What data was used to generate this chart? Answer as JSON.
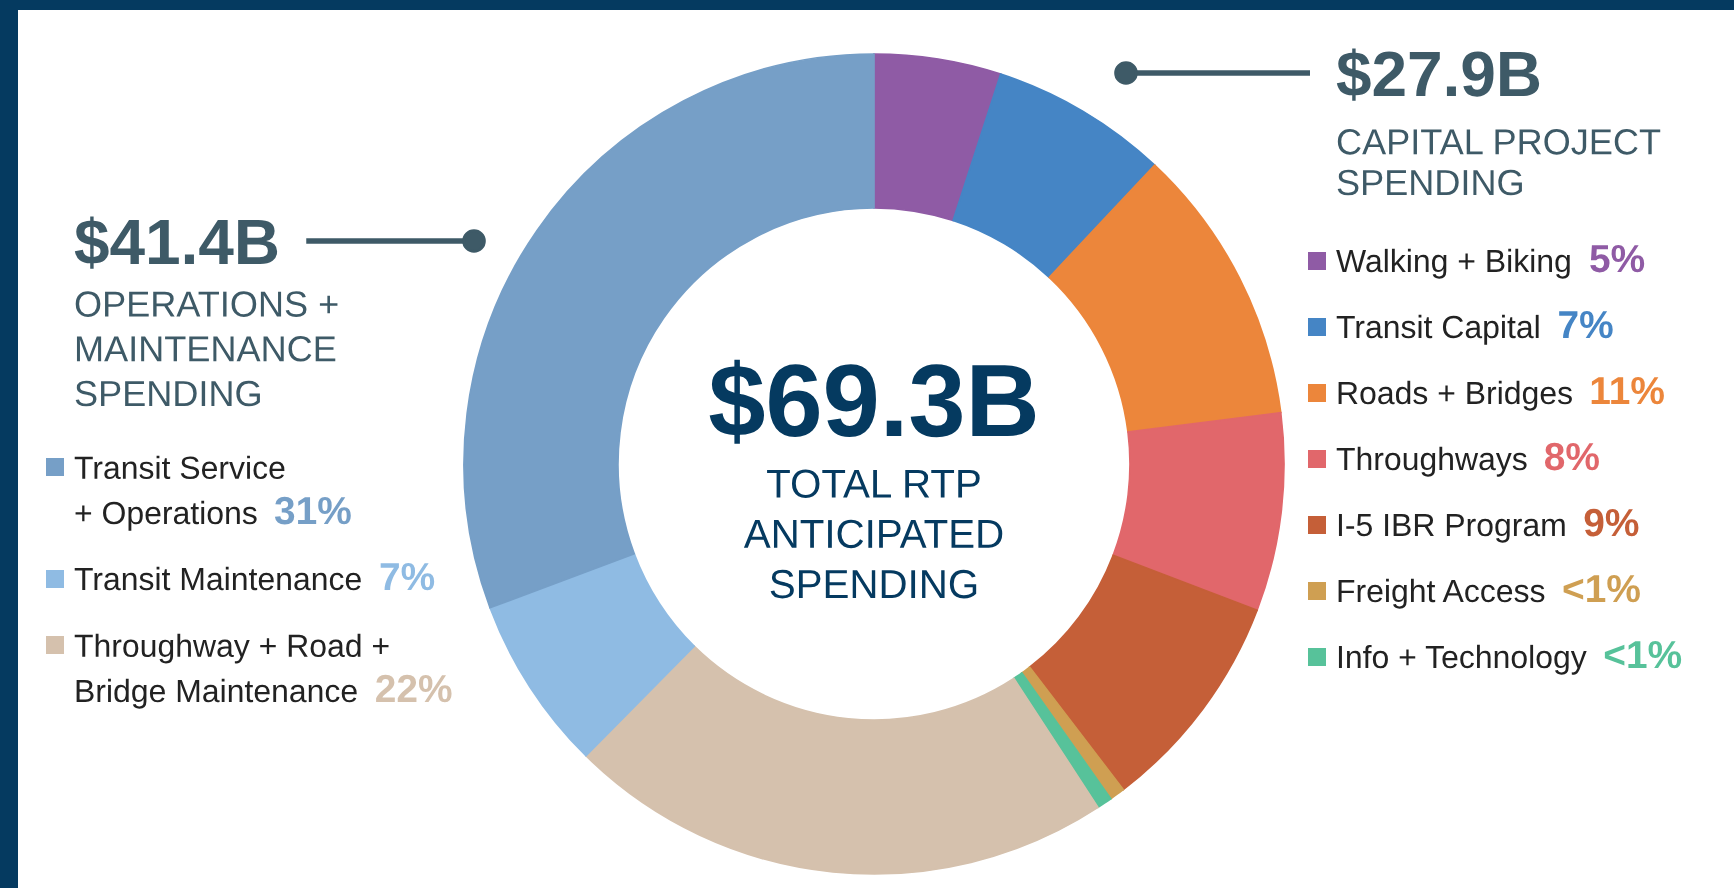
{
  "chart_data": {
    "type": "donut",
    "title": "$69.3B",
    "subtitle": "TOTAL RTP\nANTICIPATED\nSPENDING",
    "categories": [
      "Walking + Biking",
      "Transit Capital",
      "Roads + Bridges",
      "Throughways",
      "I-5 IBR Program",
      "Freight Access",
      "Info + Technology",
      "Throughway + Road +\nBridge Maintenance",
      "Transit Maintenance",
      "Transit Service\n+ Operations"
    ],
    "values": [
      5,
      7,
      11,
      7.8,
      8.8,
      0.6,
      0.6,
      21.6,
      6.9,
      30.7
    ],
    "colors": [
      "#8f5ba5",
      "#4585c5",
      "#ec863b",
      "#e1676b",
      "#c55f38",
      "#cf9f52",
      "#57c29a",
      "#d5c1ad",
      "#8fbbe3",
      "#769fc7"
    ],
    "value_labels": [
      "5%",
      "7%",
      "11%",
      "8%",
      "9%",
      "<1%",
      "<1%",
      "22%",
      "7%",
      "31%"
    ],
    "legend": "bottom left",
    "annotations": [
      "$41.4B",
      "OPERATIONS +\nMAINTENANCE\nSPENDING",
      "$27.9B",
      "CAPITAL PROJECT\nSPENDING"
    ]
  }
}
